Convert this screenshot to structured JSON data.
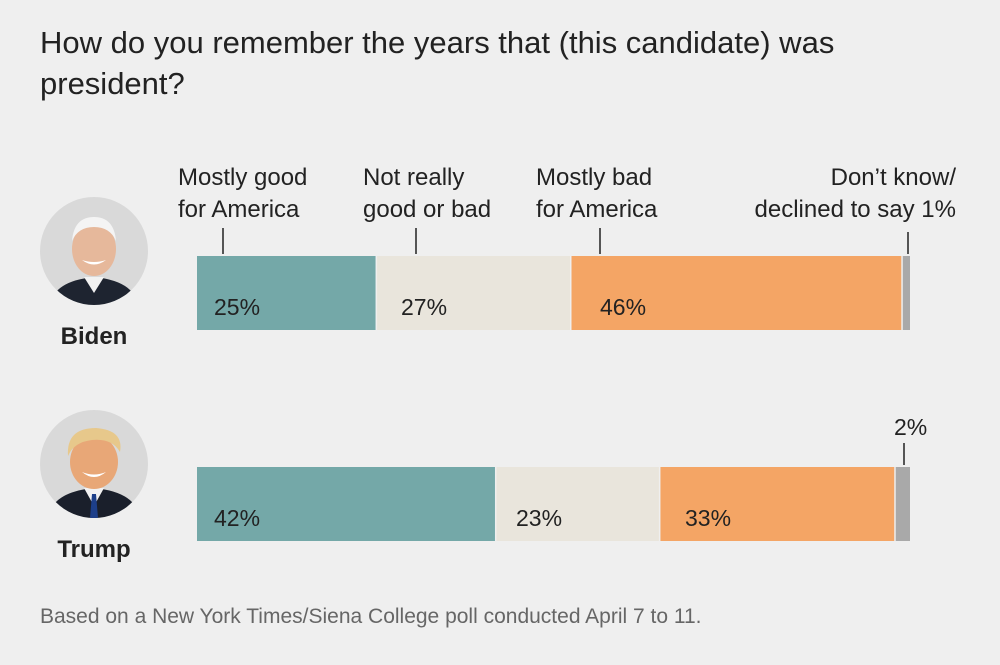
{
  "title": "How do you remember the years that (this candidate) was president?",
  "categories": [
    "Mostly good\nfor America",
    "Not really\ngood or bad",
    "Mostly bad\nfor America",
    "Don’t know/\ndeclined to say 1%"
  ],
  "colors": [
    "#74a8a8",
    "#e9e5dc",
    "#f4a565",
    "#a9a9a9"
  ],
  "candidates": [
    {
      "name": "Biden",
      "photo_icon": "biden-portrait-icon"
    },
    {
      "name": "Trump",
      "photo_icon": "trump-portrait-icon"
    }
  ],
  "trump_small_label": "2%",
  "footnote": "Based on a New York Times/Siena College poll conducted April 7 to 11.",
  "chart_data": {
    "type": "bar",
    "orientation": "horizontal-stacked",
    "categories": [
      "Biden",
      "Trump"
    ],
    "series": [
      {
        "name": "Mostly good for America",
        "values": [
          25,
          42
        ],
        "labels": [
          "25%",
          "42%"
        ]
      },
      {
        "name": "Not really good or bad",
        "values": [
          27,
          23
        ],
        "labels": [
          "27%",
          "23%"
        ]
      },
      {
        "name": "Mostly bad for America",
        "values": [
          46,
          33
        ],
        "labels": [
          "46%",
          "33%"
        ]
      },
      {
        "name": "Don’t know/ declined to say",
        "values": [
          1,
          2
        ],
        "labels": [
          "1%",
          "2%"
        ]
      }
    ],
    "legend": "top"
  }
}
